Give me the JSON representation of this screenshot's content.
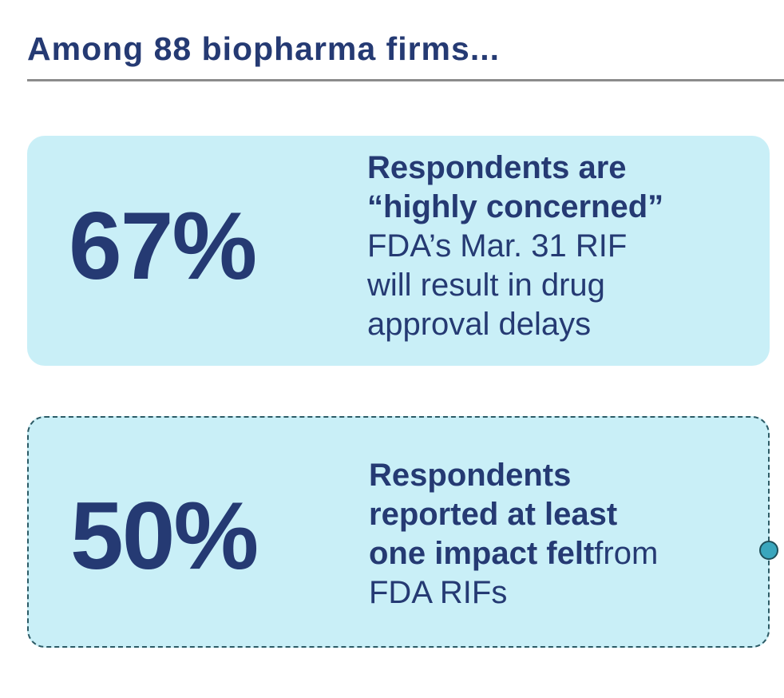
{
  "heading": "Among 88 biopharma firms...",
  "cards": [
    {
      "stat": "67%",
      "lines": [
        {
          "bold": "Respondents are",
          "regular": ""
        },
        {
          "bold": "“highly concerned”",
          "regular": ""
        },
        {
          "bold": "",
          "regular": "FDA’s Mar. 31 RIF"
        },
        {
          "bold": "",
          "regular": "will result in drug"
        },
        {
          "bold": "",
          "regular": "approval delays"
        }
      ]
    },
    {
      "stat": "50%",
      "lines": [
        {
          "bold": "Respondents",
          "regular": ""
        },
        {
          "bold": "reported at least",
          "regular": ""
        },
        {
          "bold": "one impact felt",
          "regular": "from"
        },
        {
          "bold": "",
          "regular": "FDA RIFs"
        }
      ]
    }
  ],
  "colors": {
    "text": "#253a73",
    "card_fill": "#c9eff7",
    "rule": "#8c8c8c",
    "dashed_border": "#2c5b66",
    "handle": "#3aa6bd"
  },
  "icons": {
    "selection_handle": "resize-handle-icon"
  }
}
